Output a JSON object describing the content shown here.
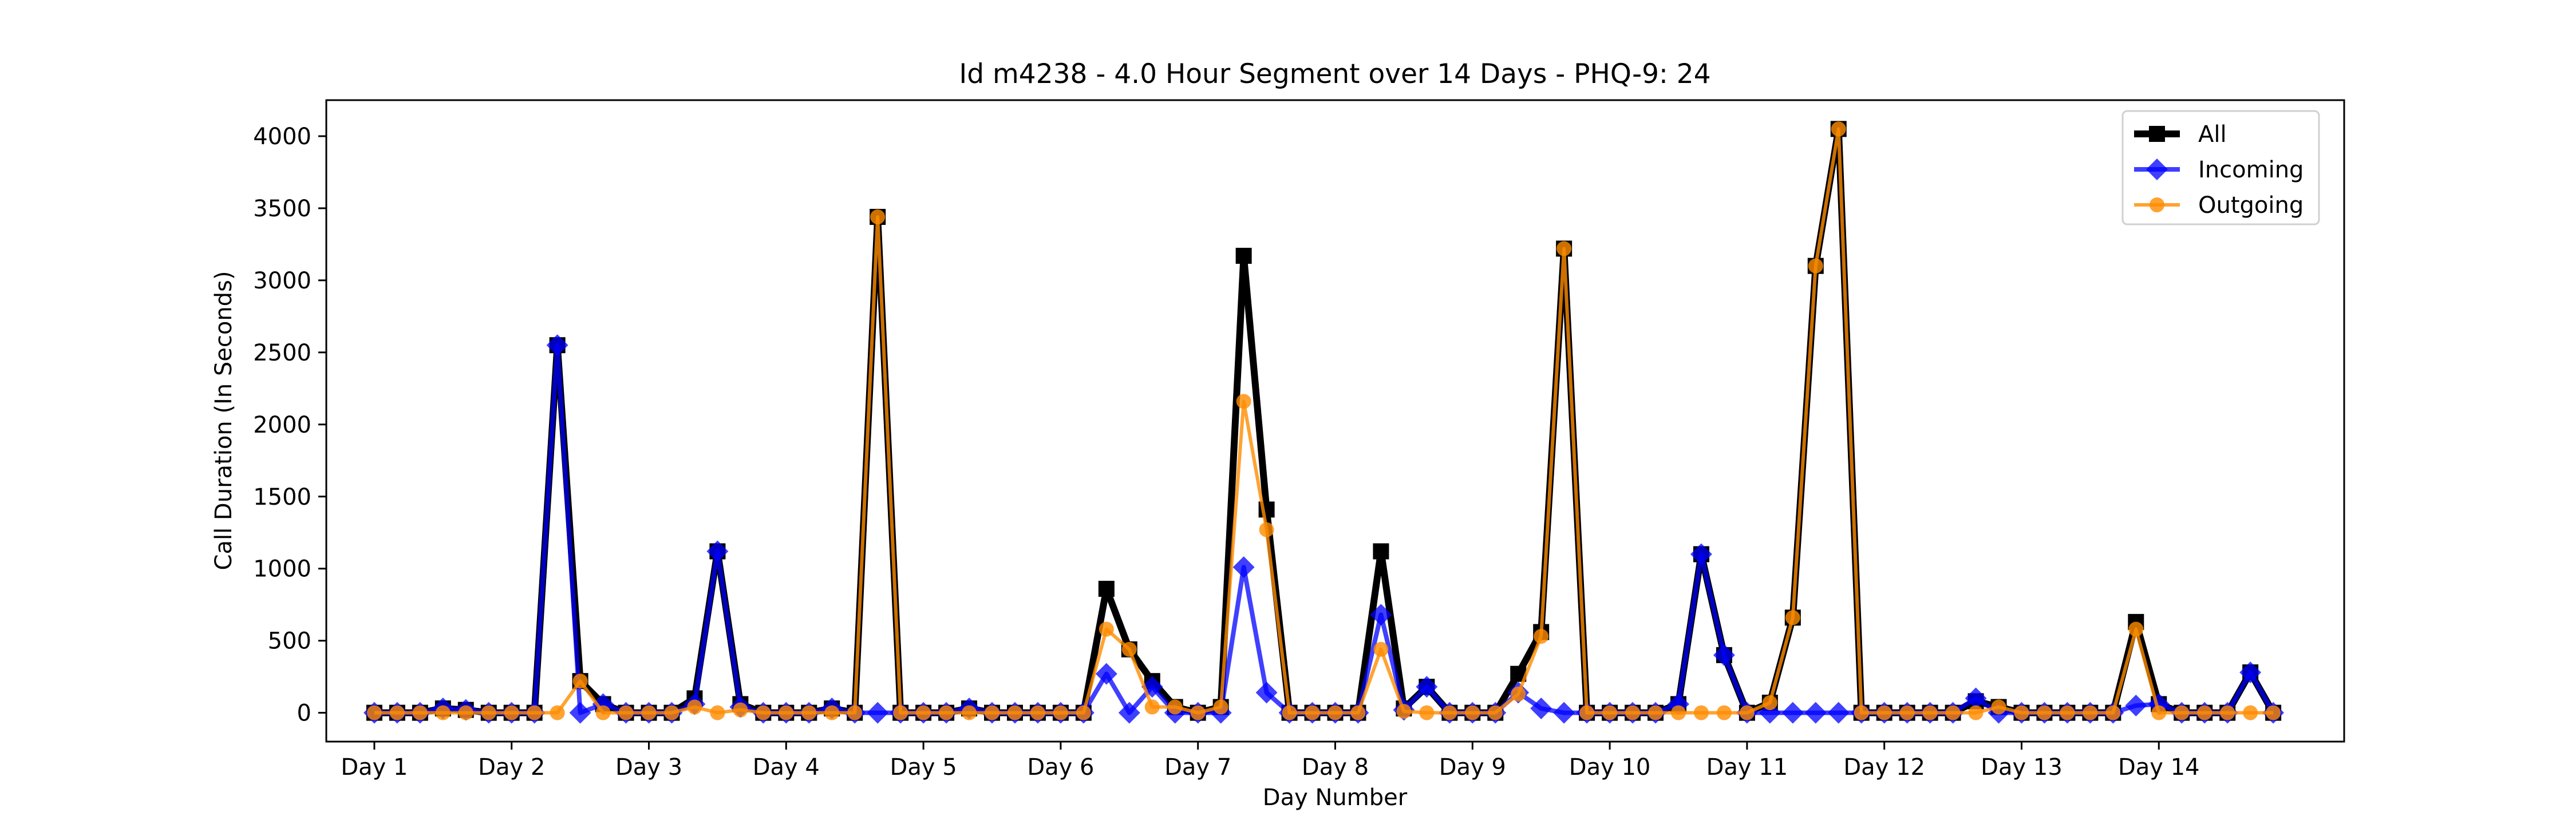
{
  "chart_data": {
    "type": "line",
    "title": "Id m4238 - 4.0 Hour Segment over 14 Days - PHQ-9: 24",
    "xlabel": "Day Number",
    "ylabel": "Call Duration (In Seconds)",
    "x_tick_labels": [
      "Day 1",
      "Day 2",
      "Day 3",
      "Day 4",
      "Day 5",
      "Day 6",
      "Day 7",
      "Day 8",
      "Day 9",
      "Day 10",
      "Day 11",
      "Day 12",
      "Day 13",
      "Day 14"
    ],
    "x_tick_index": [
      0,
      6,
      12,
      18,
      24,
      30,
      36,
      42,
      48,
      54,
      60,
      66,
      72,
      78
    ],
    "xlim": [
      -2.1,
      86.1
    ],
    "ylim": [
      -200,
      4250
    ],
    "y_ticks": [
      0,
      500,
      1000,
      1500,
      2000,
      2500,
      3000,
      3500,
      4000
    ],
    "grid": false,
    "legend_position": "top-right",
    "series": [
      {
        "name": "All",
        "color": "#000000",
        "marker": "square",
        "values": [
          0,
          0,
          0,
          30,
          20,
          0,
          0,
          0,
          2550,
          220,
          60,
          0,
          0,
          0,
          100,
          1120,
          60,
          0,
          0,
          0,
          30,
          0,
          3440,
          0,
          0,
          0,
          30,
          0,
          0,
          0,
          0,
          0,
          860,
          440,
          220,
          40,
          0,
          40,
          3170,
          1410,
          0,
          0,
          0,
          0,
          1120,
          30,
          180,
          0,
          0,
          0,
          270,
          560,
          3220,
          0,
          0,
          0,
          0,
          60,
          1100,
          400,
          0,
          70,
          660,
          3100,
          4050,
          0,
          0,
          0,
          0,
          0,
          80,
          40,
          0,
          0,
          0,
          0,
          0,
          630,
          60,
          0,
          0,
          0,
          280,
          0
        ]
      },
      {
        "name": "Incoming",
        "color": "#0000ff",
        "marker": "diamond",
        "values": [
          0,
          0,
          0,
          30,
          20,
          0,
          0,
          0,
          2550,
          0,
          60,
          0,
          0,
          0,
          60,
          1120,
          40,
          0,
          0,
          0,
          30,
          0,
          0,
          0,
          0,
          0,
          30,
          0,
          0,
          0,
          0,
          0,
          270,
          0,
          180,
          0,
          0,
          0,
          1010,
          140,
          0,
          0,
          0,
          0,
          680,
          20,
          180,
          0,
          0,
          0,
          140,
          30,
          0,
          0,
          0,
          0,
          0,
          60,
          1100,
          400,
          0,
          0,
          0,
          0,
          0,
          0,
          0,
          0,
          0,
          0,
          100,
          0,
          0,
          0,
          0,
          0,
          0,
          50,
          60,
          0,
          0,
          0,
          280,
          0
        ]
      },
      {
        "name": "Outgoing",
        "color": "#ff8c00",
        "marker": "circle",
        "values": [
          0,
          0,
          0,
          0,
          0,
          0,
          0,
          0,
          0,
          220,
          0,
          0,
          0,
          0,
          40,
          0,
          20,
          0,
          0,
          0,
          0,
          0,
          3440,
          0,
          0,
          0,
          0,
          0,
          0,
          0,
          0,
          0,
          580,
          440,
          40,
          40,
          0,
          40,
          2160,
          1270,
          0,
          0,
          0,
          0,
          440,
          10,
          0,
          0,
          0,
          0,
          130,
          530,
          3220,
          0,
          0,
          0,
          0,
          0,
          0,
          0,
          0,
          70,
          660,
          3100,
          4050,
          0,
          0,
          0,
          0,
          0,
          0,
          40,
          0,
          0,
          0,
          0,
          0,
          580,
          0,
          0,
          0,
          0,
          0,
          0
        ]
      }
    ]
  }
}
